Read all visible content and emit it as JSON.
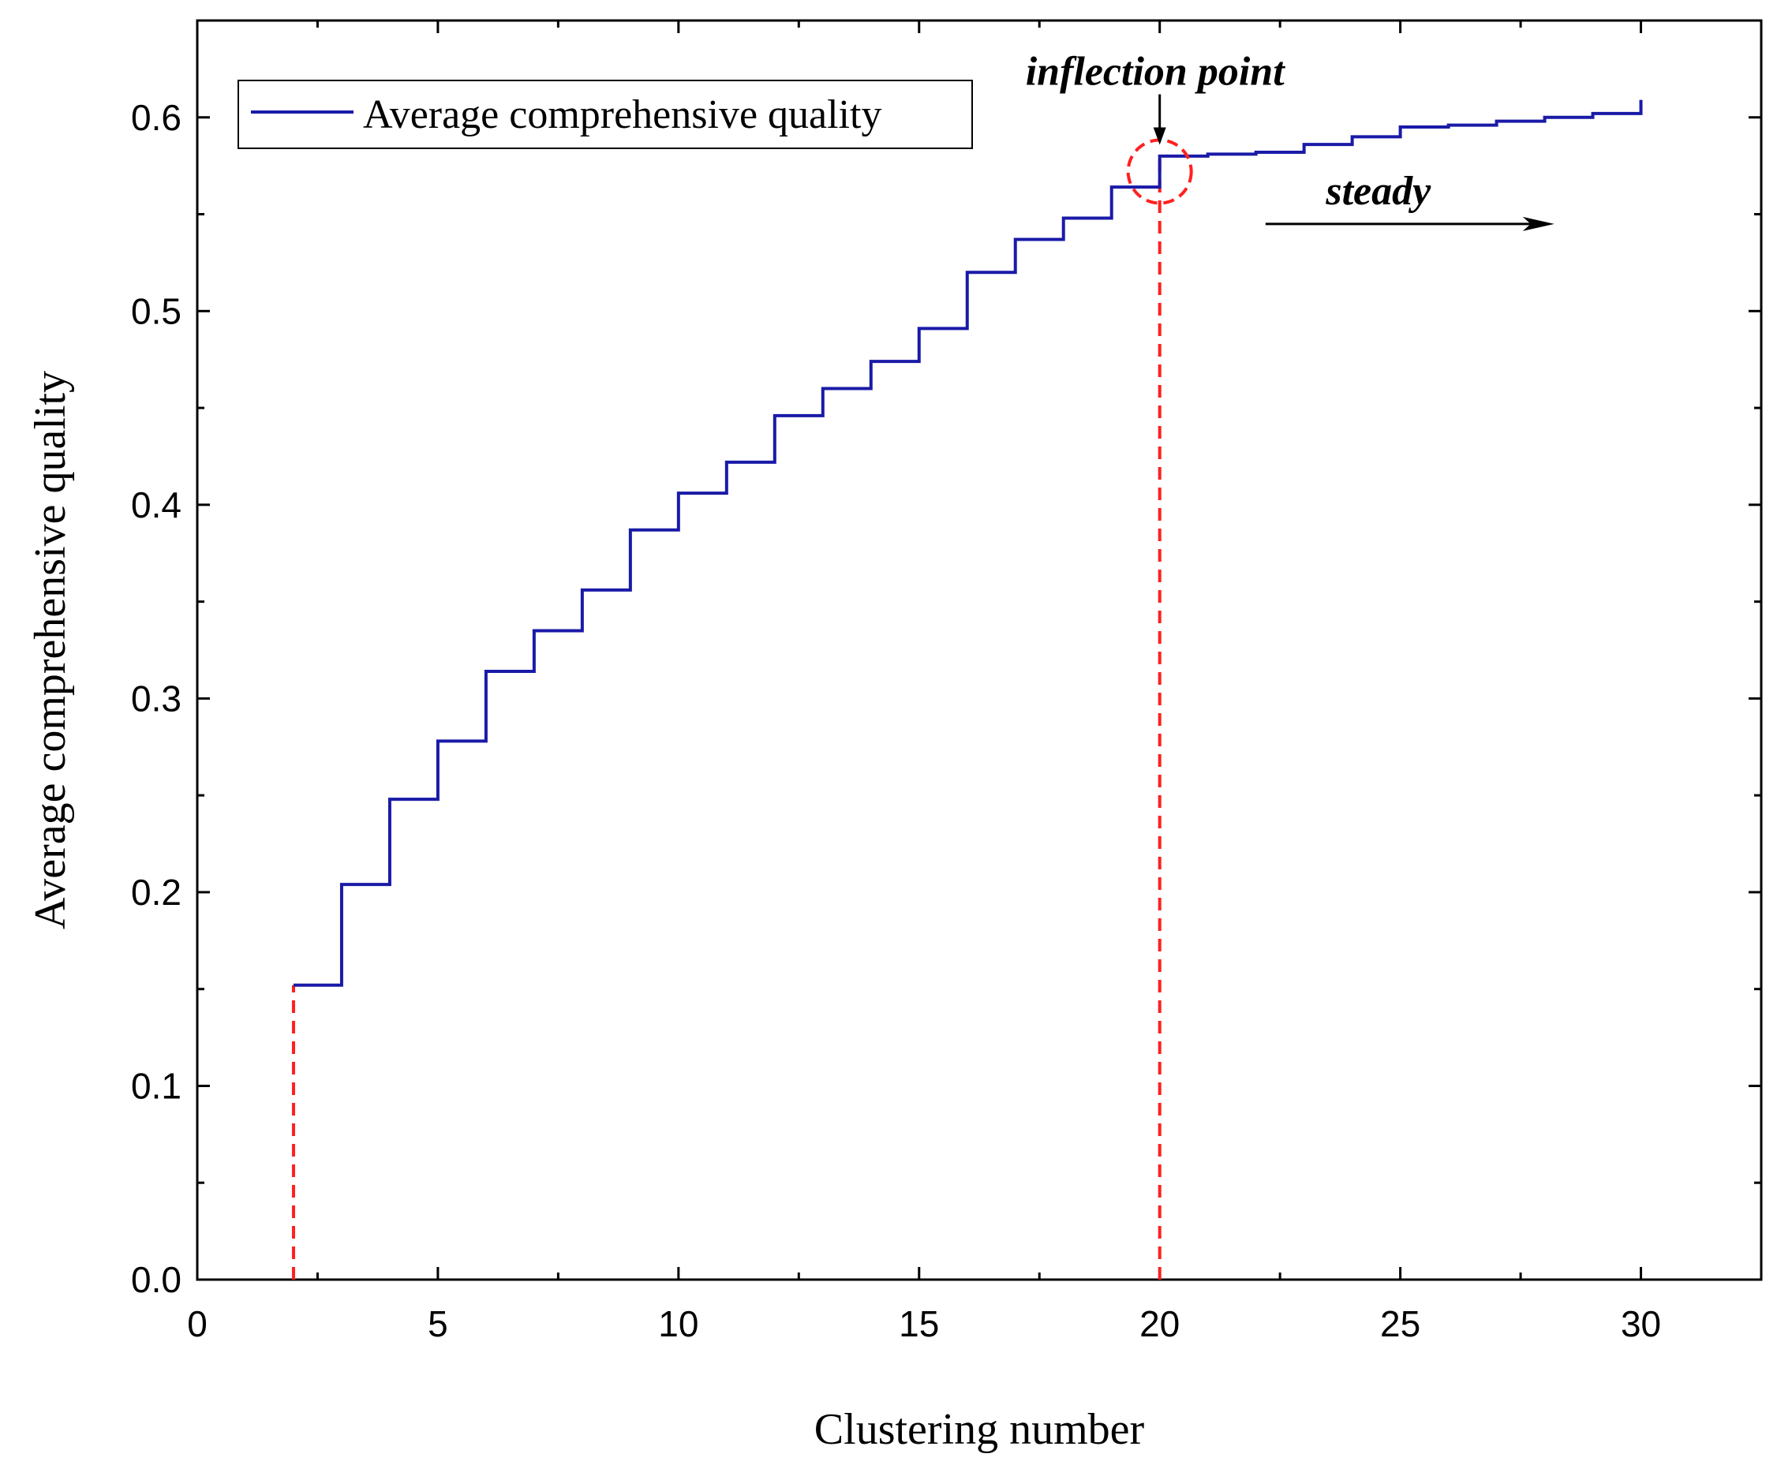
{
  "chart_data": {
    "type": "line",
    "title": "",
    "xlabel": "Clustering number",
    "ylabel": "Average comprehensive quality",
    "xlim": [
      0,
      32.5
    ],
    "ylim": [
      0,
      0.65
    ],
    "xticks": [
      0,
      5,
      10,
      15,
      20,
      25,
      30
    ],
    "yticks": [
      0.0,
      0.1,
      0.2,
      0.3,
      0.4,
      0.5,
      0.6
    ],
    "xtick_labels": [
      "0",
      "5",
      "10",
      "15",
      "20",
      "25",
      "30"
    ],
    "ytick_labels": [
      "0.0",
      "0.1",
      "0.2",
      "0.3",
      "0.4",
      "0.5",
      "0.6"
    ],
    "legend": {
      "entries": [
        "Average comprehensive quality"
      ],
      "placement": "top-left"
    },
    "series": [
      {
        "name": "Average comprehensive quality",
        "color": "#1a1aa8",
        "step": "post",
        "x": [
          2,
          3,
          4,
          5,
          6,
          7,
          8,
          9,
          10,
          11,
          12,
          13,
          14,
          15,
          16,
          17,
          18,
          19,
          20,
          21,
          22,
          23,
          24,
          25,
          26,
          27,
          28,
          29,
          30
        ],
        "values": [
          0.152,
          0.204,
          0.248,
          0.278,
          0.314,
          0.335,
          0.356,
          0.387,
          0.406,
          0.422,
          0.446,
          0.46,
          0.474,
          0.491,
          0.52,
          0.537,
          0.548,
          0.564,
          0.58,
          0.581,
          0.582,
          0.586,
          0.59,
          0.595,
          0.596,
          0.598,
          0.6,
          0.602,
          0.609
        ]
      }
    ],
    "reference_lines": [
      {
        "x": 2,
        "y": 0.152,
        "color": "#ff2020",
        "style": "dashed"
      },
      {
        "x": 20,
        "y": 0.58,
        "color": "#ff2020",
        "style": "dashed"
      }
    ],
    "annotations": [
      {
        "text": "inflection point",
        "x": 20,
        "y": 0.572
      },
      {
        "text": "steady",
        "x_start": 22.2,
        "x_end": 28.2,
        "y": 0.545
      }
    ],
    "highlight_circle": {
      "x": 20,
      "y": 0.572,
      "color": "#ff2020"
    }
  }
}
